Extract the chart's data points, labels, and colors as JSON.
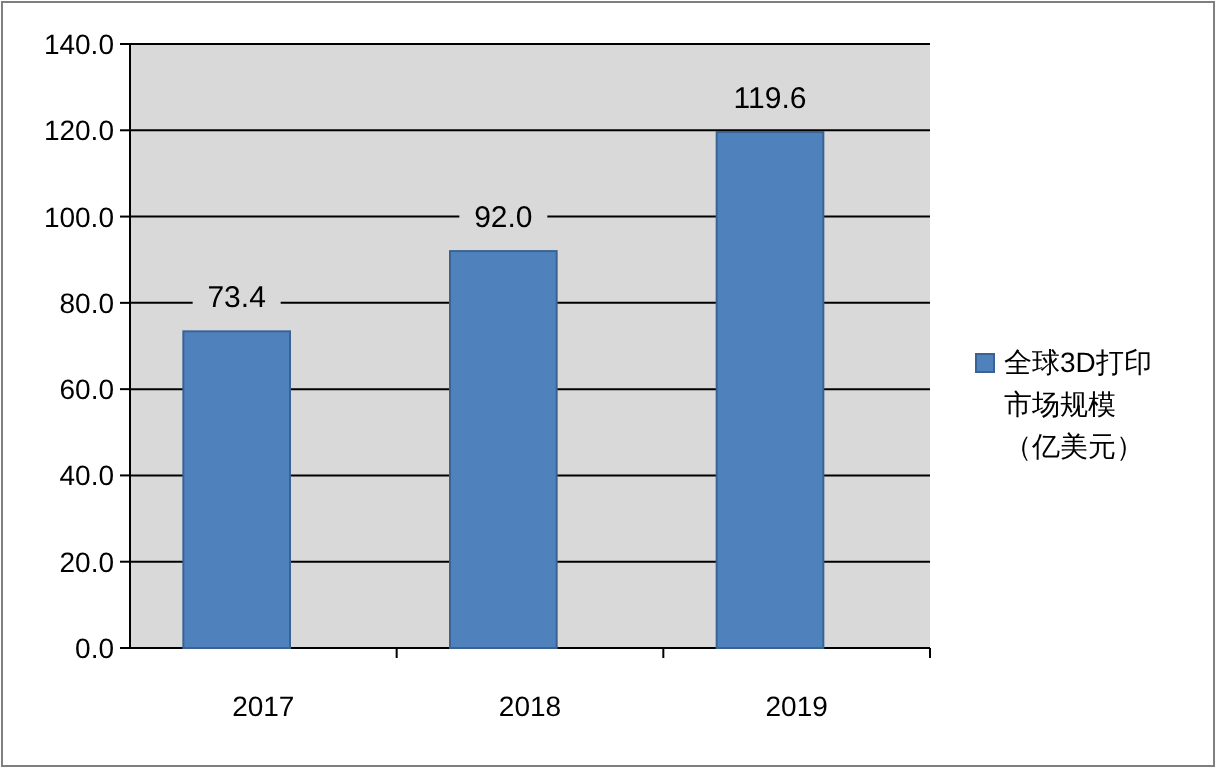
{
  "chart_data": {
    "type": "bar",
    "categories": [
      "2017",
      "2018",
      "2019"
    ],
    "series": [
      {
        "name": "全球3D打印市场规模（亿美元）",
        "color": "#4f81bd",
        "values": [
          73.4,
          92.0,
          119.6
        ],
        "value_labels": [
          "73.4",
          "92.0",
          "119.6"
        ]
      }
    ],
    "ylim": [
      0,
      140
    ],
    "yticks": [
      {
        "value": 0,
        "label": "0.0"
      },
      {
        "value": 20,
        "label": "20.0"
      },
      {
        "value": 40,
        "label": "40.0"
      },
      {
        "value": 60,
        "label": "60.0"
      },
      {
        "value": 80,
        "label": "80.0"
      },
      {
        "value": 100,
        "label": "100.0"
      },
      {
        "value": 120,
        "label": "120.0"
      },
      {
        "value": 140,
        "label": "140.0"
      }
    ],
    "grid": "y",
    "legend": "right"
  }
}
